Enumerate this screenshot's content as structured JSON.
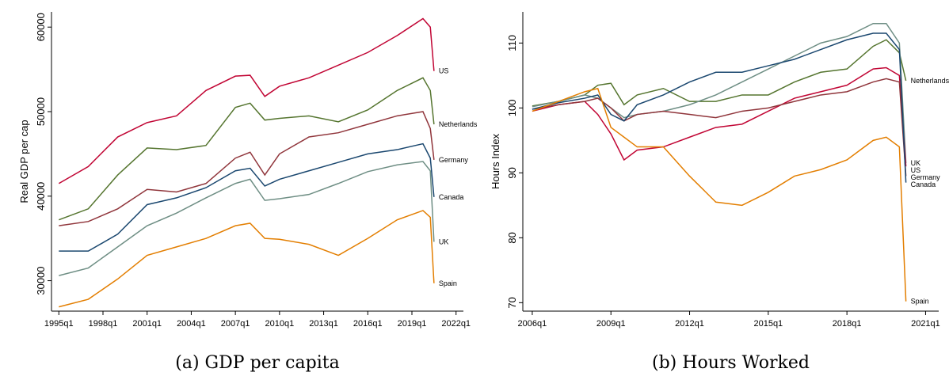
{
  "chart_data": [
    {
      "type": "line",
      "caption": "(a) GDP per capita",
      "y_label": "Real GDP per cap",
      "x": [
        1995,
        1997,
        1999,
        2001,
        2003,
        2005,
        2007,
        2008,
        2009,
        2010,
        2012,
        2014,
        2016,
        2018,
        2019.75,
        2020.25,
        2020.5
      ],
      "xlim": [
        1994.5,
        2022.5
      ],
      "xticks": [
        {
          "value": 1995,
          "label": "1995q1"
        },
        {
          "value": 1998,
          "label": "1998q1"
        },
        {
          "value": 2001,
          "label": "2001q1"
        },
        {
          "value": 2004,
          "label": "2004q1"
        },
        {
          "value": 2007,
          "label": "2007q1"
        },
        {
          "value": 2010,
          "label": "2010q1"
        },
        {
          "value": 2013,
          "label": "2013q1"
        },
        {
          "value": 2016,
          "label": "2016q1"
        },
        {
          "value": 2019,
          "label": "2019q1"
        },
        {
          "value": 2022,
          "label": "2022q1"
        }
      ],
      "ylim": [
        26400,
        61800
      ],
      "yticks": [
        30000,
        40000,
        50000,
        60000
      ],
      "series": [
        {
          "name": "US",
          "color": "#c10534",
          "values": [
            41500,
            43500,
            47000,
            48700,
            49500,
            52500,
            54200,
            54300,
            51800,
            53000,
            54000,
            55500,
            57000,
            59000,
            61000,
            60000,
            54800
          ]
        },
        {
          "name": "Netherlands",
          "color": "#55752f",
          "values": [
            37200,
            38500,
            42500,
            45700,
            45500,
            46000,
            50500,
            51000,
            49000,
            49200,
            49500,
            48800,
            50200,
            52500,
            54000,
            52500,
            48500
          ]
        },
        {
          "name": "Germany",
          "color": "#90353b",
          "values": [
            36500,
            37000,
            38500,
            40800,
            40500,
            41500,
            44500,
            45200,
            42500,
            45000,
            47000,
            47500,
            48500,
            49500,
            50000,
            48000,
            44300
          ]
        },
        {
          "name": "Canada",
          "color": "#1a476f",
          "values": [
            33500,
            33500,
            35500,
            39000,
            39800,
            41000,
            43000,
            43300,
            41200,
            42000,
            43000,
            44000,
            45000,
            45500,
            46200,
            44500,
            39900
          ]
        },
        {
          "name": "UK",
          "color": "#6e8e84",
          "values": [
            30600,
            31500,
            34000,
            36500,
            38000,
            39800,
            41500,
            42000,
            39500,
            39700,
            40200,
            41500,
            42900,
            43700,
            44100,
            43000,
            34600
          ]
        },
        {
          "name": "Spain",
          "color": "#e37e00",
          "values": [
            26900,
            27800,
            30200,
            33000,
            34000,
            35000,
            36500,
            36800,
            35000,
            34900,
            34300,
            33000,
            35000,
            37200,
            38300,
            37500,
            29700
          ]
        }
      ]
    },
    {
      "type": "line",
      "caption": "(b) Hours Worked",
      "y_label": "Hours Index",
      "x": [
        2006,
        2007,
        2008,
        2008.5,
        2009,
        2009.5,
        2010,
        2011,
        2012,
        2013,
        2014,
        2015,
        2016,
        2017,
        2018,
        2019,
        2019.5,
        2020,
        2020.25
      ],
      "xlim": [
        2005.64,
        2021.5
      ],
      "xticks": [
        {
          "value": 2006,
          "label": "2006q1"
        },
        {
          "value": 2009,
          "label": "2009q1"
        },
        {
          "value": 2012,
          "label": "2012q1"
        },
        {
          "value": 2015,
          "label": "2015q1"
        },
        {
          "value": 2018,
          "label": "2018q1"
        },
        {
          "value": 2021,
          "label": "2021q1"
        }
      ],
      "ylim": [
        68.7,
        114.8
      ],
      "yticks": [
        70,
        80,
        90,
        100,
        110
      ],
      "series": [
        {
          "name": "Netherlands",
          "color": "#55752f",
          "values": [
            100.3,
            101,
            102,
            103.5,
            103.8,
            100.5,
            102,
            103,
            101,
            101,
            102,
            102,
            104,
            105.5,
            106,
            109.5,
            110.5,
            108.5,
            104.2
          ]
        },
        {
          "name": "UK",
          "color": "#6e8e84",
          "values": [
            100.2,
            101,
            102,
            101.5,
            100,
            98.5,
            99,
            99.5,
            100.5,
            102,
            104,
            106,
            108,
            110,
            111,
            113,
            113,
            110,
            91.5
          ]
        },
        {
          "name": "US",
          "color": "#c10534",
          "values": [
            99.5,
            100.5,
            101,
            99,
            96,
            92,
            93.5,
            94,
            95.5,
            97,
            97.5,
            99.5,
            101.5,
            102.5,
            103.5,
            106,
            106.2,
            105,
            91
          ]
        },
        {
          "name": "Germany",
          "color": "#90353b",
          "values": [
            99.8,
            100.5,
            101,
            101.5,
            100,
            98,
            99,
            99.5,
            99,
            98.5,
            99.5,
            100,
            101,
            102,
            102.5,
            104,
            104.5,
            104,
            89.5
          ]
        },
        {
          "name": "Canada",
          "color": "#1a476f",
          "values": [
            99.8,
            100.8,
            101.5,
            102,
            99,
            98,
            100.5,
            102,
            104,
            105.5,
            105.5,
            106.5,
            107.5,
            109,
            110.5,
            111.5,
            111.5,
            109,
            88.5
          ]
        },
        {
          "name": "Spain",
          "color": "#e37e00",
          "values": [
            99.5,
            101,
            102.5,
            103,
            97,
            95.5,
            94,
            94,
            89.5,
            85.5,
            85,
            87,
            89.5,
            90.5,
            92,
            95,
            95.5,
            94,
            70.2
          ]
        }
      ]
    }
  ]
}
